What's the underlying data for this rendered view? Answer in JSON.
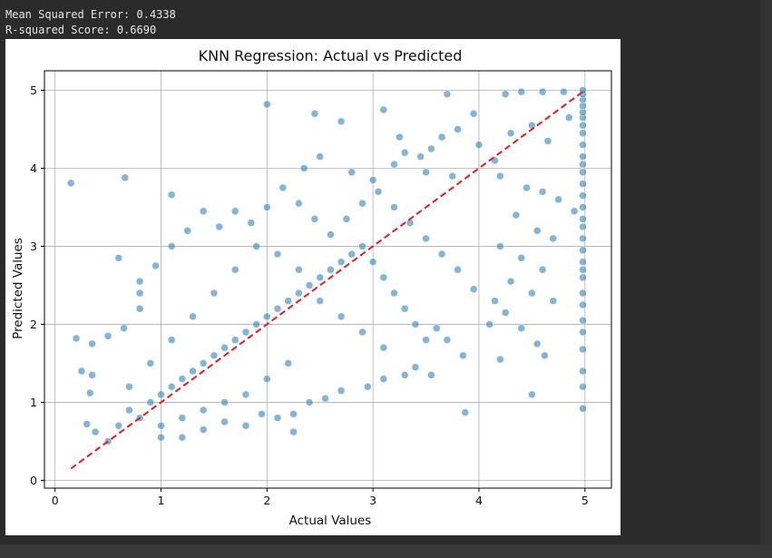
{
  "output": {
    "mse_line": "Mean Squared Error: 0.4338",
    "r2_line": "R-squared Score: 0.6690"
  },
  "colors": {
    "point": "#1f77b4",
    "ideal_line": "#e41a1c",
    "grid": "#b0b0b0"
  },
  "chart_data": {
    "type": "scatter",
    "title": "KNN Regression: Actual vs Predicted",
    "xlabel": "Actual Values",
    "ylabel": "Predicted Values",
    "xlim": [
      -0.1,
      5.25
    ],
    "ylim": [
      -0.1,
      5.25
    ],
    "xticks": [
      0,
      1,
      2,
      3,
      4,
      5
    ],
    "yticks": [
      0,
      1,
      2,
      3,
      4,
      5
    ],
    "grid": true,
    "reference_line": {
      "from": [
        0.15,
        0.15
      ],
      "to": [
        5.0,
        5.0
      ],
      "style": "dashed"
    },
    "points": [
      [
        0.15,
        3.81
      ],
      [
        0.66,
        3.88
      ],
      [
        0.6,
        2.85
      ],
      [
        1.1,
        3.66
      ],
      [
        2.0,
        4.82
      ],
      [
        2.45,
        4.7
      ],
      [
        2.7,
        4.6
      ],
      [
        3.1,
        4.75
      ],
      [
        3.3,
        4.2
      ],
      [
        3.45,
        4.15
      ],
      [
        3.55,
        4.25
      ],
      [
        3.65,
        4.4
      ],
      [
        3.8,
        4.5
      ],
      [
        3.95,
        4.7
      ],
      [
        4.25,
        4.95
      ],
      [
        4.4,
        4.98
      ],
      [
        4.6,
        4.98
      ],
      [
        4.8,
        4.98
      ],
      [
        3.7,
        4.95
      ],
      [
        3.25,
        4.4
      ],
      [
        2.35,
        4.0
      ],
      [
        2.5,
        4.15
      ],
      [
        2.8,
        3.95
      ],
      [
        3.0,
        3.85
      ],
      [
        3.2,
        4.05
      ],
      [
        3.5,
        3.95
      ],
      [
        3.75,
        3.9
      ],
      [
        4.0,
        4.3
      ],
      [
        4.15,
        4.1
      ],
      [
        4.3,
        4.45
      ],
      [
        4.5,
        4.55
      ],
      [
        4.65,
        4.35
      ],
      [
        4.85,
        4.65
      ],
      [
        4.2,
        3.9
      ],
      [
        4.45,
        3.75
      ],
      [
        4.6,
        3.7
      ],
      [
        4.75,
        3.6
      ],
      [
        4.9,
        3.45
      ],
      [
        4.35,
        3.4
      ],
      [
        4.55,
        3.2
      ],
      [
        4.7,
        3.1
      ],
      [
        4.2,
        3.0
      ],
      [
        4.4,
        2.85
      ],
      [
        4.6,
        2.7
      ],
      [
        4.3,
        2.55
      ],
      [
        4.5,
        2.4
      ],
      [
        4.7,
        2.3
      ],
      [
        4.15,
        2.3
      ],
      [
        4.25,
        2.15
      ],
      [
        4.4,
        1.95
      ],
      [
        4.55,
        1.75
      ],
      [
        4.2,
        1.55
      ],
      [
        4.62,
        1.6
      ],
      [
        4.5,
        1.1
      ],
      [
        3.87,
        0.87
      ],
      [
        4.1,
        2.0
      ],
      [
        3.95,
        2.45
      ],
      [
        3.8,
        2.7
      ],
      [
        3.65,
        2.9
      ],
      [
        3.5,
        3.1
      ],
      [
        3.35,
        3.3
      ],
      [
        3.2,
        3.5
      ],
      [
        3.05,
        3.7
      ],
      [
        2.9,
        3.55
      ],
      [
        2.75,
        3.35
      ],
      [
        2.6,
        3.15
      ],
      [
        2.45,
        3.35
      ],
      [
        2.3,
        3.55
      ],
      [
        2.15,
        3.75
      ],
      [
        2.0,
        3.5
      ],
      [
        1.85,
        3.3
      ],
      [
        1.7,
        3.45
      ],
      [
        1.55,
        3.25
      ],
      [
        1.4,
        3.45
      ],
      [
        1.25,
        3.2
      ],
      [
        1.1,
        3.0
      ],
      [
        0.95,
        2.75
      ],
      [
        0.8,
        2.55
      ],
      [
        0.8,
        2.4
      ],
      [
        0.8,
        2.2
      ],
      [
        0.65,
        1.95
      ],
      [
        0.5,
        1.85
      ],
      [
        0.35,
        1.75
      ],
      [
        0.2,
        1.82
      ],
      [
        0.25,
        1.4
      ],
      [
        0.35,
        1.35
      ],
      [
        0.33,
        1.12
      ],
      [
        0.3,
        0.72
      ],
      [
        0.38,
        0.62
      ],
      [
        0.5,
        0.5
      ],
      [
        3.6,
        1.95
      ],
      [
        3.7,
        1.8
      ],
      [
        3.85,
        1.6
      ],
      [
        3.4,
        1.45
      ],
      [
        3.55,
        1.35
      ],
      [
        3.3,
        1.35
      ],
      [
        3.1,
        1.3
      ],
      [
        2.95,
        1.2
      ],
      [
        2.7,
        1.15
      ],
      [
        2.55,
        1.05
      ],
      [
        2.4,
        1.0
      ],
      [
        2.25,
        0.85
      ],
      [
        2.25,
        0.62
      ],
      [
        2.1,
        0.8
      ],
      [
        1.95,
        0.85
      ],
      [
        1.8,
        0.7
      ],
      [
        1.6,
        0.75
      ],
      [
        1.4,
        0.65
      ],
      [
        1.2,
        0.55
      ],
      [
        1.0,
        0.55
      ],
      [
        4.98,
        0.92
      ],
      [
        4.98,
        1.2
      ],
      [
        4.98,
        1.4
      ],
      [
        4.98,
        1.68
      ],
      [
        4.98,
        1.9
      ],
      [
        4.98,
        2.05
      ],
      [
        4.98,
        2.25
      ],
      [
        4.98,
        2.4
      ],
      [
        4.98,
        2.6
      ],
      [
        4.98,
        2.8
      ],
      [
        4.98,
        2.95
      ],
      [
        4.98,
        3.1
      ],
      [
        4.98,
        3.25
      ],
      [
        4.98,
        3.35
      ],
      [
        4.98,
        3.5
      ],
      [
        4.98,
        3.65
      ],
      [
        4.98,
        3.8
      ],
      [
        4.98,
        3.95
      ],
      [
        4.98,
        4.05
      ],
      [
        4.98,
        4.15
      ],
      [
        4.98,
        4.3
      ],
      [
        4.98,
        4.45
      ],
      [
        4.98,
        4.55
      ],
      [
        4.98,
        4.65
      ],
      [
        4.98,
        4.72
      ],
      [
        4.98,
        4.8
      ],
      [
        4.98,
        4.88
      ],
      [
        4.98,
        4.95
      ],
      [
        4.98,
        5.0
      ],
      [
        4.98,
        2.7
      ],
      [
        0.6,
        0.7
      ],
      [
        0.7,
        0.9
      ],
      [
        0.8,
        0.8
      ],
      [
        0.9,
        1.0
      ],
      [
        1.0,
        1.1
      ],
      [
        1.1,
        1.2
      ],
      [
        1.2,
        1.3
      ],
      [
        1.3,
        1.4
      ],
      [
        1.4,
        1.5
      ],
      [
        1.5,
        1.6
      ],
      [
        1.6,
        1.7
      ],
      [
        1.7,
        1.8
      ],
      [
        1.8,
        1.9
      ],
      [
        1.9,
        2.0
      ],
      [
        2.0,
        2.1
      ],
      [
        2.1,
        2.2
      ],
      [
        2.2,
        2.3
      ],
      [
        2.3,
        2.4
      ],
      [
        2.4,
        2.5
      ],
      [
        2.5,
        2.6
      ],
      [
        2.6,
        2.7
      ],
      [
        2.7,
        2.8
      ],
      [
        2.8,
        2.9
      ],
      [
        2.9,
        3.0
      ],
      [
        3.0,
        2.8
      ],
      [
        3.1,
        2.6
      ],
      [
        3.2,
        2.4
      ],
      [
        3.3,
        2.2
      ],
      [
        3.4,
        2.0
      ],
      [
        3.5,
        1.8
      ],
      [
        0.7,
        1.2
      ],
      [
        0.9,
        1.5
      ],
      [
        1.1,
        1.8
      ],
      [
        1.3,
        2.1
      ],
      [
        1.5,
        2.4
      ],
      [
        1.7,
        2.7
      ],
      [
        1.9,
        3.0
      ],
      [
        2.1,
        2.9
      ],
      [
        2.3,
        2.7
      ],
      [
        2.5,
        2.3
      ],
      [
        2.7,
        2.1
      ],
      [
        2.9,
        1.9
      ],
      [
        3.1,
        1.7
      ],
      [
        2.2,
        1.5
      ],
      [
        2.0,
        1.3
      ],
      [
        1.8,
        1.1
      ],
      [
        1.6,
        1.0
      ],
      [
        1.4,
        0.9
      ],
      [
        1.2,
        0.8
      ],
      [
        1.0,
        0.7
      ]
    ]
  }
}
